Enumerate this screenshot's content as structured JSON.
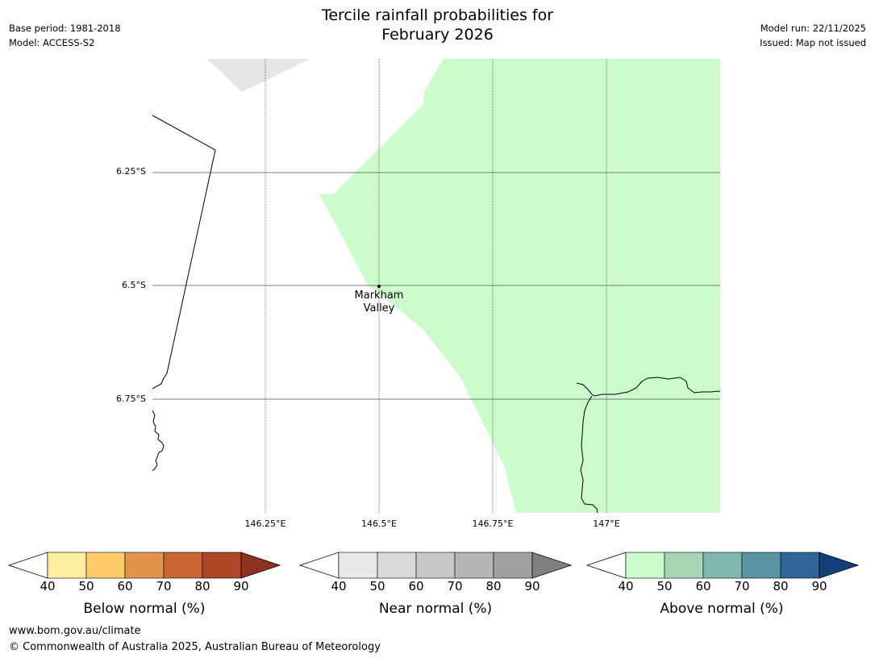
{
  "header": {
    "title_line1": "Tercile rainfall probabilities for",
    "title_line2": "February 2026",
    "base_period": "Base period: 1981-2018",
    "model": "Model: ACCESS-S2",
    "model_run": "Model run: 22/11/2025",
    "issued": "Issued: Map not issued"
  },
  "map": {
    "lat_labels": [
      "6.25°S",
      "6.5°S",
      "6.75°S"
    ],
    "lon_labels": [
      "146.25°E",
      "146.5°E",
      "146.75°E",
      "147°E"
    ],
    "location": {
      "name_line1": "Markham",
      "name_line2": "Valley"
    },
    "colors": {
      "above_40_50": "#ccfccc",
      "near_40_50": "#e6e6e6",
      "coast": "#000000",
      "grid": "#555555"
    }
  },
  "colorbars": {
    "ticks": [
      "40",
      "50",
      "60",
      "70",
      "80",
      "90"
    ],
    "below": {
      "label": "Below normal (%)",
      "colors": [
        "#fdeea0",
        "#fdcc66",
        "#e2944a",
        "#cc6534",
        "#ae4628",
        "#8e3120"
      ]
    },
    "near": {
      "label": "Near normal (%)",
      "colors": [
        "#e8e8e8",
        "#d9d9d9",
        "#c8c8c8",
        "#b5b5b5",
        "#a0a0a0",
        "#808080"
      ]
    },
    "above": {
      "label": "Above normal (%)",
      "colors": [
        "#ccfccc",
        "#a7d5b6",
        "#82b7b0",
        "#5a93a1",
        "#2f6697",
        "#113f7a"
      ]
    }
  },
  "footer": {
    "url": "www.bom.gov.au/climate",
    "copyright": "© Commonwealth of Australia 2025, Australian Bureau of Meteorology"
  }
}
